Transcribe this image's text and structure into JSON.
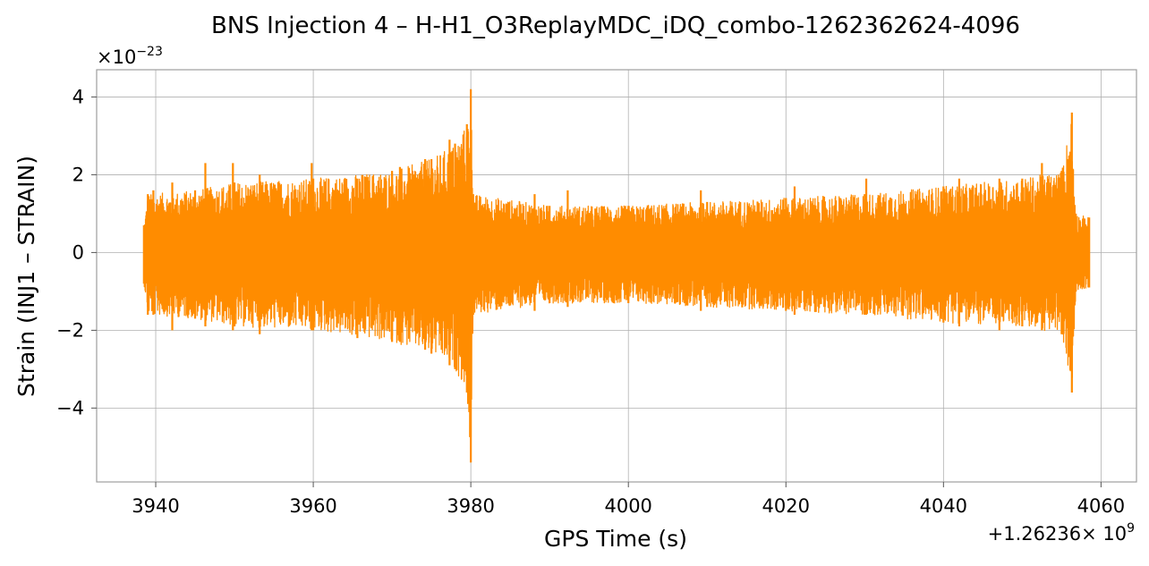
{
  "chart_data": {
    "type": "line",
    "title": "BNS Injection 4 – H-H1_O3ReplayMDC_iDQ_combo-1262362624-4096",
    "xlabel": "GPS Time (s)",
    "ylabel": "Strain (INJ1 – STRAIN)",
    "x_offset_label": "+1.26236",
    "x_offset_exp_base": "× 10",
    "x_offset_exp": "9",
    "y_offset_base": "×10",
    "y_offset_exp": "−23",
    "xlim": [
      3932.5,
      4064.5
    ],
    "ylim": [
      -5.9,
      4.7
    ],
    "x_ticks": [
      3940,
      3960,
      3980,
      4000,
      4020,
      4040,
      4060
    ],
    "x_tick_labels": [
      "3940",
      "3960",
      "3980",
      "4000",
      "4020",
      "4040",
      "4060"
    ],
    "y_ticks": [
      4,
      2,
      0,
      -2,
      -4
    ],
    "y_tick_labels": [
      "4",
      "2",
      "0",
      "−2",
      "−4"
    ],
    "grid": true,
    "color": "#ff8c00",
    "series": [
      {
        "x_start": 3938.5,
        "x_end": 4058.5,
        "envelope": [
          {
            "x": 3938.5,
            "max": 0.7,
            "min": -0.8
          },
          {
            "x": 3939.0,
            "max": 1.5,
            "min": -1.6
          },
          {
            "x": 3945.0,
            "max": 1.6,
            "min": -1.7
          },
          {
            "x": 3950.0,
            "max": 1.8,
            "min": -1.9
          },
          {
            "x": 3960.0,
            "max": 1.9,
            "min": -2.0
          },
          {
            "x": 3970.0,
            "max": 2.1,
            "min": -2.3
          },
          {
            "x": 3975.0,
            "max": 2.4,
            "min": -2.6
          },
          {
            "x": 3978.0,
            "max": 2.8,
            "min": -3.0
          },
          {
            "x": 3979.5,
            "max": 3.3,
            "min": -3.6
          },
          {
            "x": 3980.0,
            "max": 4.2,
            "min": -5.4
          },
          {
            "x": 3980.3,
            "max": 1.5,
            "min": -1.6
          },
          {
            "x": 3990.0,
            "max": 1.2,
            "min": -1.3
          },
          {
            "x": 4000.0,
            "max": 1.2,
            "min": -1.3
          },
          {
            "x": 4010.0,
            "max": 1.3,
            "min": -1.4
          },
          {
            "x": 4020.0,
            "max": 1.4,
            "min": -1.5
          },
          {
            "x": 4030.0,
            "max": 1.5,
            "min": -1.6
          },
          {
            "x": 4040.0,
            "max": 1.7,
            "min": -1.8
          },
          {
            "x": 4050.0,
            "max": 1.9,
            "min": -1.9
          },
          {
            "x": 4055.0,
            "max": 2.1,
            "min": -2.1
          },
          {
            "x": 4056.3,
            "max": 3.6,
            "min": -3.6
          },
          {
            "x": 4056.8,
            "max": 1.0,
            "min": -1.0
          },
          {
            "x": 4058.5,
            "max": 0.9,
            "min": -0.9
          }
        ],
        "spikes": [
          {
            "x": 3939.7,
            "max": 1.6,
            "min": -1.6
          },
          {
            "x": 3942.1,
            "max": 1.8,
            "min": -2.0
          },
          {
            "x": 3946.3,
            "max": 2.3,
            "min": -1.9
          },
          {
            "x": 3949.8,
            "max": 2.3,
            "min": -2.0
          },
          {
            "x": 3953.2,
            "max": 2.0,
            "min": -2.1
          },
          {
            "x": 3959.8,
            "max": 2.3,
            "min": -2.0
          },
          {
            "x": 3965.6,
            "max": 1.9,
            "min": -2.2
          },
          {
            "x": 3971.0,
            "max": 2.2,
            "min": -2.3
          },
          {
            "x": 3974.2,
            "max": 2.4,
            "min": -2.5
          },
          {
            "x": 3977.3,
            "max": 2.9,
            "min": -2.9
          },
          {
            "x": 3988.1,
            "max": 1.5,
            "min": -1.5
          },
          {
            "x": 3992.3,
            "max": 1.6,
            "min": -1.4
          },
          {
            "x": 4009.2,
            "max": 1.6,
            "min": -1.5
          },
          {
            "x": 4021.1,
            "max": 1.7,
            "min": -1.6
          },
          {
            "x": 4030.2,
            "max": 1.9,
            "min": -1.6
          },
          {
            "x": 4042.0,
            "max": 1.9,
            "min": -1.9
          },
          {
            "x": 4047.1,
            "max": 1.9,
            "min": -2.0
          },
          {
            "x": 4052.5,
            "max": 2.3,
            "min": -2.0
          }
        ]
      }
    ]
  }
}
